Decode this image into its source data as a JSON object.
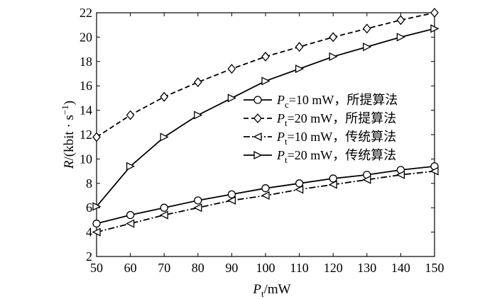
{
  "chart_data": {
    "type": "line",
    "x": [
      50,
      60,
      70,
      80,
      90,
      100,
      110,
      120,
      130,
      140,
      150
    ],
    "xlim": [
      50,
      150
    ],
    "ylim": [
      2,
      22
    ],
    "xticks": [
      50,
      60,
      70,
      80,
      90,
      100,
      110,
      120,
      130,
      140,
      150
    ],
    "yticks": [
      2,
      4,
      6,
      8,
      10,
      12,
      14,
      16,
      18,
      20,
      22
    ],
    "xlabel": {
      "symbol": "P",
      "sub": "t",
      "unit": "/mW"
    },
    "ylabel": {
      "symbol": "R",
      "unit": "/(kbit · s",
      "sup": "−1",
      "close": ")"
    },
    "grid": false,
    "legend_position": "center-right",
    "series": [
      {
        "sym": "P",
        "sub": "c",
        "rest": "=10 mW，所提算法",
        "marker": "circle",
        "dash": "solid",
        "values": [
          4.7,
          5.4,
          6.0,
          6.6,
          7.1,
          7.6,
          8.0,
          8.4,
          8.7,
          9.1,
          9.4
        ]
      },
      {
        "sym": "P",
        "sub": "t",
        "rest": "=20 mW，所提算法",
        "marker": "diamond",
        "dash": "dashed",
        "values": [
          11.8,
          13.6,
          15.1,
          16.3,
          17.4,
          18.4,
          19.2,
          20.0,
          20.7,
          21.4,
          22.0
        ]
      },
      {
        "sym": "P",
        "sub": "t",
        "rest": "=10 mW，传统算法",
        "marker": "triangle-left",
        "dash": "dashdot",
        "values": [
          4.0,
          4.7,
          5.4,
          6.0,
          6.6,
          7.0,
          7.5,
          7.9,
          8.3,
          8.7,
          9.0
        ]
      },
      {
        "sym": "P",
        "sub": "t",
        "rest": "=20 mW，传统算法",
        "marker": "triangle-right",
        "dash": "solid",
        "values": [
          6.1,
          9.4,
          11.8,
          13.6,
          15.0,
          16.4,
          17.4,
          18.4,
          19.2,
          20.0,
          20.7
        ]
      }
    ]
  }
}
